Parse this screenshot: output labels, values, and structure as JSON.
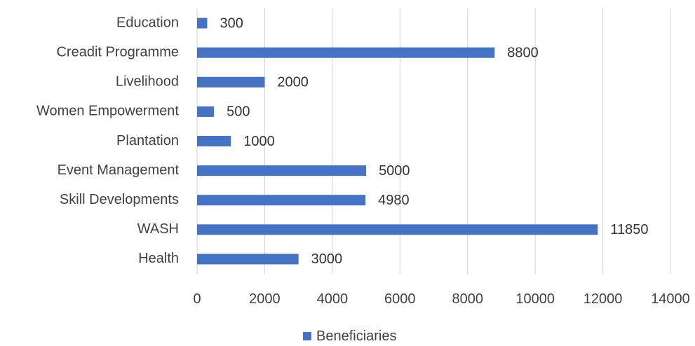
{
  "chart_data": {
    "type": "bar",
    "orientation": "horizontal",
    "title": "",
    "xlabel": "",
    "ylabel": "",
    "categories": [
      "Education",
      "Creadit Programme",
      "Livelihood",
      "Women Empowerment",
      "Plantation",
      "Event Management",
      "Skill Developments",
      "WASH",
      "Health"
    ],
    "series": [
      {
        "name": "Beneficiaries",
        "values": [
          300,
          8800,
          2000,
          500,
          1000,
          5000,
          4980,
          11850,
          3000
        ]
      }
    ],
    "xlim": [
      0,
      14000
    ],
    "xticks": [
      0,
      2000,
      4000,
      6000,
      8000,
      10000,
      12000,
      14000
    ],
    "grid": "vertical",
    "legend_position": "bottom",
    "bar_color": "#4472C4"
  }
}
